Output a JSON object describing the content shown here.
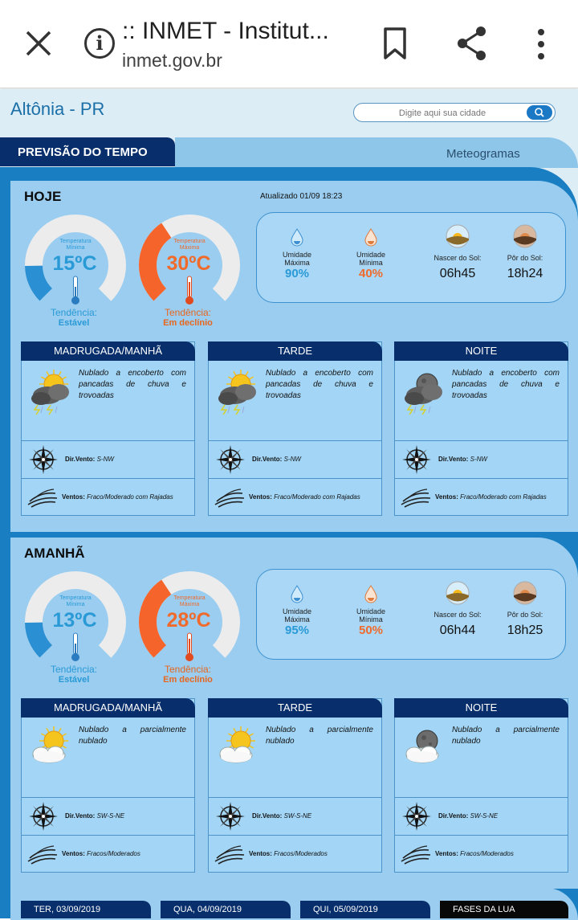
{
  "browser": {
    "title": ":: INMET - Institut...",
    "url": "inmet.gov.br",
    "info_glyph": "i",
    "icons": [
      "close-icon",
      "info-icon",
      "bookmark-icon",
      "share-icon",
      "more-vert-icon"
    ]
  },
  "site": {
    "city": "Altônia - PR",
    "search_placeholder": "Digite aqui sua cidade",
    "tabs": [
      "PREVISÃO DO TEMPO",
      "Meteogramas"
    ]
  },
  "labels": {
    "temp_min": "Temperatura Mínima",
    "temp_max": "Temperatura Máxima",
    "trend": "Tendência:",
    "humidity_max": "Umidade Máxima",
    "humidity_min": "Umidade Mínima",
    "sunrise": "Nascer do Sol:",
    "sunset": "Pôr do Sol:",
    "wind_dir": "Dir.Vento:",
    "wind_speed": "Ventos:"
  },
  "days": [
    {
      "title": "HOJE",
      "updated": "Atualizado 01/09 18:23",
      "temp_min": "15ºC",
      "temp_min_trend": "Estável",
      "temp_max": "30ºC",
      "temp_max_trend": "Em declínio",
      "humidity_max": "90%",
      "humidity_min": "40%",
      "sunrise": "06h45",
      "sunset": "18h24",
      "periods": [
        {
          "name": "MADRUGADA/MANHÃ",
          "icon": "sun-cloud-storm-icon",
          "desc": "Nublado a encoberto com pancadas de chuva e trovoadas",
          "wind_dir": "S-NW",
          "wind": "Fraco/Moderado com Rajadas"
        },
        {
          "name": "TARDE",
          "icon": "sun-cloud-storm-icon",
          "desc": "Nublado a encoberto com pancadas de chuva e trovoadas",
          "wind_dir": "S-NW",
          "wind": "Fraco/Moderado com Rajadas"
        },
        {
          "name": "NOITE",
          "icon": "moon-cloud-storm-icon",
          "desc": "Nublado a encoberto com pancadas de chuva e trovoadas",
          "wind_dir": "S-NW",
          "wind": "Fraco/Moderado com Rajadas"
        }
      ]
    },
    {
      "title": "AMANHÃ",
      "updated": "",
      "temp_min": "13ºC",
      "temp_min_trend": "Estável",
      "temp_max": "28ºC",
      "temp_max_trend": "Em declínio",
      "humidity_max": "95%",
      "humidity_min": "50%",
      "sunrise": "06h44",
      "sunset": "18h25",
      "periods": [
        {
          "name": "MADRUGADA/MANHÃ",
          "icon": "sun-cloud-icon",
          "desc": "Nublado a parcialmente nublado",
          "wind_dir": "SW-S-NE",
          "wind": "Fracos/Moderados"
        },
        {
          "name": "TARDE",
          "icon": "sun-cloud-icon",
          "desc": "Nublado a parcialmente nublado",
          "wind_dir": "SW-S-NE",
          "wind": "Fracos/Moderados"
        },
        {
          "name": "NOITE",
          "icon": "moon-cloud-icon",
          "desc": "Nublado a parcialmente nublado",
          "wind_dir": "SW-S-NE",
          "wind": "Fracos/Moderados"
        }
      ]
    }
  ],
  "bottom_tabs": [
    "TER, 03/09/2019",
    "QUA, 04/09/2019",
    "QUI, 05/09/2019",
    "FASES DA LUA"
  ],
  "colors": {
    "navy": "#082f6c",
    "blue_text": "#2a9ad6",
    "orange_text": "#f06a2b",
    "gauge_blue": "#2a8fd3",
    "gauge_orange": "#f5652b",
    "trend_orange": "#e8661e"
  }
}
